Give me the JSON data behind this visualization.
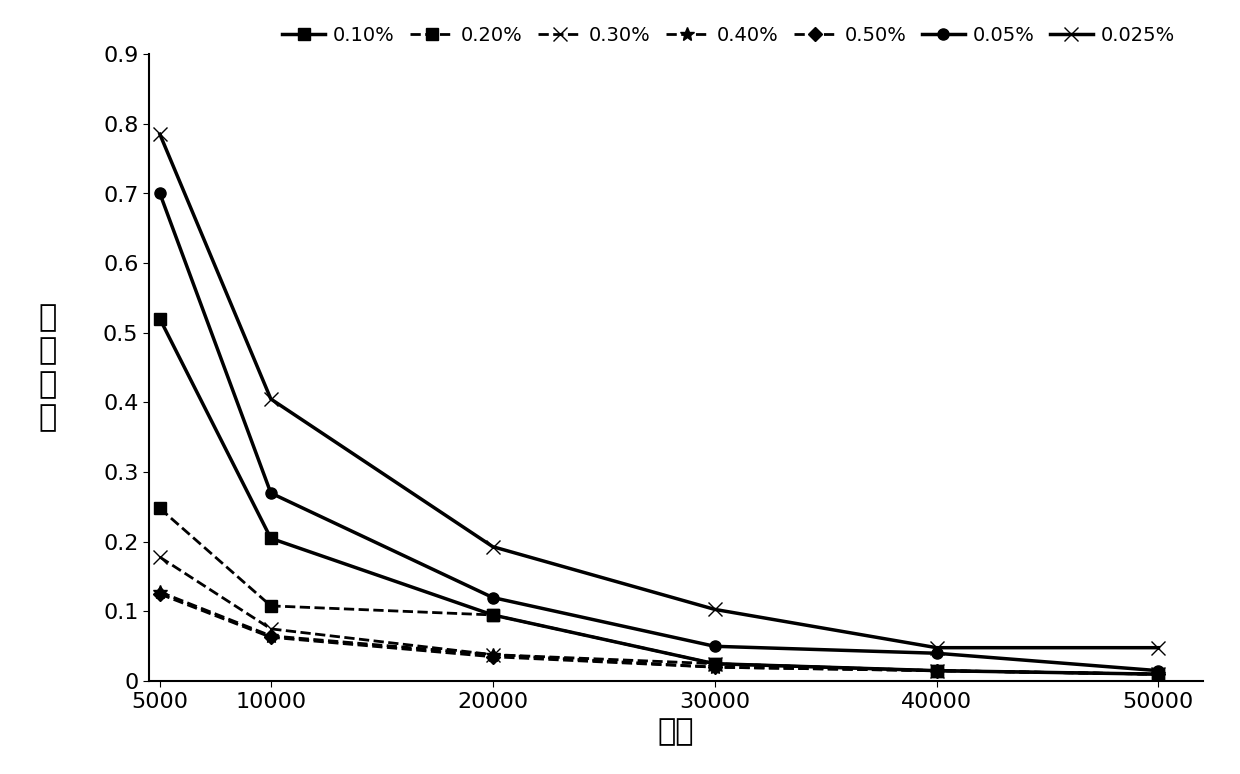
{
  "x": [
    5000,
    10000,
    20000,
    30000,
    40000,
    50000
  ],
  "series": [
    {
      "label": "0.10%",
      "values": [
        0.52,
        0.205,
        0.095,
        0.025,
        0.015,
        0.01
      ],
      "linestyle": "-",
      "marker": "s"
    },
    {
      "label": "0.20%",
      "values": [
        0.248,
        0.108,
        0.095,
        0.025,
        0.015,
        0.01
      ],
      "linestyle": "--",
      "marker": "s"
    },
    {
      "label": "0.30%",
      "values": [
        0.178,
        0.075,
        0.038,
        0.025,
        0.015,
        0.01
      ],
      "linestyle": "--",
      "marker": "x"
    },
    {
      "label": "0.40%",
      "values": [
        0.128,
        0.065,
        0.038,
        0.02,
        0.015,
        0.01
      ],
      "linestyle": "--",
      "marker": "*"
    },
    {
      "label": "0.50%",
      "values": [
        0.125,
        0.063,
        0.035,
        0.02,
        0.015,
        0.01
      ],
      "linestyle": "--",
      "marker": "D"
    },
    {
      "label": "0.05%",
      "values": [
        0.7,
        0.27,
        0.12,
        0.05,
        0.04,
        0.015
      ],
      "linestyle": "-",
      "marker": "o"
    },
    {
      "label": "0.025%",
      "values": [
        0.785,
        0.405,
        0.193,
        0.103,
        0.048,
        0.048
      ],
      "linestyle": "-",
      "marker": "x"
    }
  ],
  "xlabel": "粒数",
  "ylabel_chars": [
    "偏",
    "离",
    "系",
    "数"
  ],
  "ylim": [
    0,
    0.9
  ],
  "xlim": [
    4500,
    52000
  ],
  "xticks": [
    5000,
    10000,
    20000,
    30000,
    40000,
    50000
  ],
  "yticks": [
    0,
    0.1,
    0.2,
    0.3,
    0.4,
    0.5,
    0.6,
    0.7,
    0.8,
    0.9
  ],
  "background_color": "#ffffff",
  "line_color": "#000000",
  "label_fontsize": 22,
  "tick_fontsize": 16,
  "legend_fontsize": 14
}
